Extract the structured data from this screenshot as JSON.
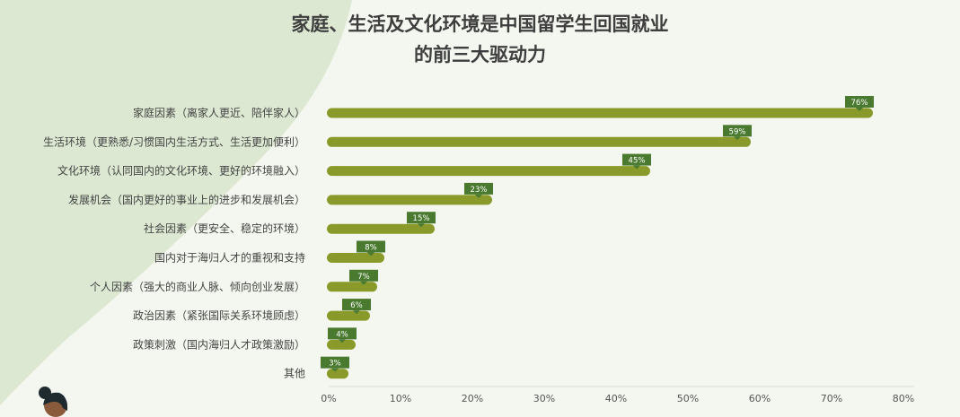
{
  "title_line1": "家庭、生活及文化环境是中国留学生回国就业",
  "title_line2": "的前三大驱动力",
  "colors": {
    "bar": "#8a9a2a",
    "label_box": "#4a7a30",
    "decor": "#dce8d2",
    "text": "#444444",
    "axis": "#d8ddd0"
  },
  "chart_data": {
    "type": "bar",
    "orientation": "horizontal",
    "title": "家庭、生活及文化环境是中国留学生回国就业的前三大驱动力",
    "categories": [
      "家庭因素（离家人更近、陪伴家人）",
      "生活环境（更熟悉/习惯国内生活方式、生活更加便利）",
      "文化环境（认同国内的文化环境、更好的环境融入）",
      "发展机会（国内更好的事业上的进步和发展机会）",
      "社会因素（更安全、稳定的环境）",
      "国内对于海归人才的重视和支持",
      "个人因素（强大的商业人脉、倾向创业发展）",
      "政治因素（紧张国际关系环境顾虑）",
      "政策刺激（国内海归人才政策激励）",
      "其他"
    ],
    "values": [
      76,
      59,
      45,
      23,
      15,
      8,
      7,
      6,
      4,
      3
    ],
    "value_labels": [
      "76%",
      "59%",
      "45%",
      "23%",
      "15%",
      "8%",
      "7%",
      "6%",
      "4%",
      "3%"
    ],
    "xlim": [
      0,
      80
    ],
    "x_ticks": [
      "0%",
      "10%",
      "20%",
      "30%",
      "40%",
      "50%",
      "60%",
      "70%",
      "80%"
    ],
    "grid": false,
    "legend": "none"
  }
}
